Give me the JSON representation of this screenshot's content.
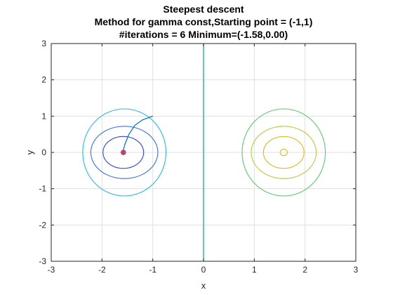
{
  "chart_data": {
    "type": "contour",
    "title": [
      "Steepest descent",
      "Method for gamma const,Starting point = (-1,1)",
      "#iterations = 6 Minimum=(-1.58,0.00)"
    ],
    "xlabel": "x",
    "ylabel": "y",
    "xlim": [
      -3,
      3
    ],
    "ylim": [
      -3,
      3
    ],
    "xticks": [
      -3,
      -2,
      -1,
      0,
      1,
      2,
      3
    ],
    "yticks": [
      -3,
      -2,
      -1,
      0,
      1,
      2,
      3
    ],
    "xtick_labels": [
      "-3",
      "-2",
      "-1",
      "0",
      "1",
      "2",
      "3"
    ],
    "ytick_labels": [
      "-3",
      "-2",
      "-1",
      "0",
      "1",
      "2",
      "3"
    ],
    "grid": true,
    "contours": [
      {
        "name": "left-level-1",
        "color": "#2a2ad8",
        "center": [
          -1.58,
          0.0
        ],
        "rx": 0.04,
        "ry": 0.06
      },
      {
        "name": "left-level-2",
        "color": "#3344e0",
        "center": [
          -1.58,
          0.0
        ],
        "rx": 0.4,
        "ry": 0.44
      },
      {
        "name": "left-level-3",
        "color": "#3a6ee8",
        "center": [
          -1.56,
          0.0
        ],
        "rx": 0.66,
        "ry": 0.72
      },
      {
        "name": "left-level-4",
        "color": "#2bb7e0",
        "center": [
          -1.56,
          0.0
        ],
        "rx": 0.82,
        "ry": 1.2
      },
      {
        "name": "vertical-level",
        "color": "#2aa9a9",
        "line_x": 0.0
      },
      {
        "name": "right-level-1",
        "color": "#d4c21a",
        "center": [
          1.58,
          0.0
        ],
        "rx": 0.07,
        "ry": 0.09
      },
      {
        "name": "right-level-2",
        "color": "#d9bb22",
        "center": [
          1.58,
          0.0
        ],
        "rx": 0.4,
        "ry": 0.44
      },
      {
        "name": "right-level-3",
        "color": "#b6c83a",
        "center": [
          1.58,
          0.0
        ],
        "rx": 0.64,
        "ry": 0.72
      },
      {
        "name": "right-level-4",
        "color": "#5cc870",
        "center": [
          1.58,
          0.0
        ],
        "rx": 0.82,
        "ry": 1.2
      }
    ],
    "path": {
      "color": "#0072bd",
      "points": [
        [
          -1.0,
          1.0
        ],
        [
          -1.2,
          0.9
        ],
        [
          -1.35,
          0.75
        ],
        [
          -1.47,
          0.5
        ],
        [
          -1.55,
          0.22
        ],
        [
          -1.58,
          0.06
        ],
        [
          -1.58,
          0.0
        ]
      ]
    },
    "minimum": {
      "x": -1.58,
      "y": 0.0,
      "color": "#e8321e",
      "marker": "*"
    }
  }
}
